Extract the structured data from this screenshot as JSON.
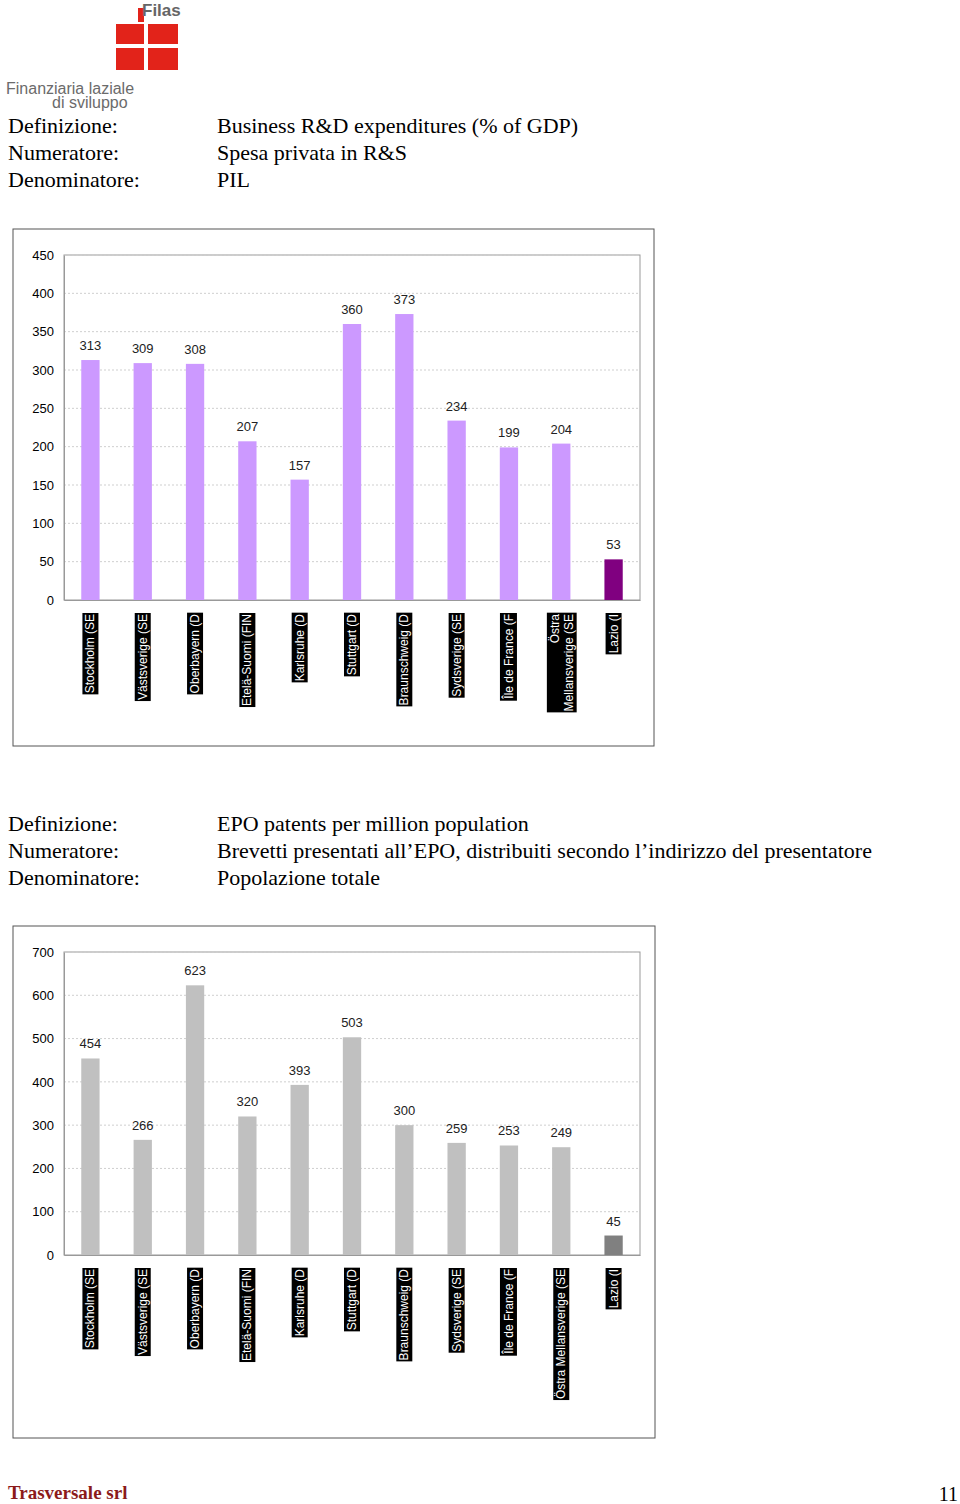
{
  "header": {
    "brand": "Filas",
    "company_line1": "Finanziaria laziale",
    "company_line2": "di sviluppo"
  },
  "definitions": [
    {
      "rows": [
        {
          "label": "Definizione:",
          "text": "Business R&D expenditures (% of GDP)"
        },
        {
          "label": "Numeratore:",
          "text": "Spesa privata in R&S"
        },
        {
          "label": "Denominatore:",
          "text": "PIL"
        }
      ]
    },
    {
      "rows": [
        {
          "label": "Definizione:",
          "text": "EPO patents per million population"
        },
        {
          "label": "Numeratore:",
          "text": "Brevetti presentati all’EPO, distribuiti secondo l’indirizzo del presentatore"
        },
        {
          "label": "Denominatore:",
          "text": "Popolazione totale"
        }
      ]
    }
  ],
  "chart_data": [
    {
      "type": "bar",
      "categories": [
        "Stockholm (SE",
        "Västsverige (SE",
        "Oberbayern (D",
        "Etelä-Suomi (FIN",
        "Karlsruhe (D",
        "Stuttgart (D",
        "Braunschweig (D",
        "Sydsverige (SE",
        "Île de France (F",
        "Östra Mellansverige (SE",
        "Lazio (I"
      ],
      "values": [
        313,
        309,
        308,
        207,
        157,
        360,
        373,
        234,
        199,
        204,
        53
      ],
      "colors": [
        "#cc99ff",
        "#cc99ff",
        "#cc99ff",
        "#cc99ff",
        "#cc99ff",
        "#cc99ff",
        "#cc99ff",
        "#cc99ff",
        "#cc99ff",
        "#cc99ff",
        "#800080"
      ],
      "ylim": [
        0,
        450
      ],
      "yticks": [
        0,
        50,
        100,
        150,
        200,
        250,
        300,
        350,
        400,
        450
      ],
      "grid": true,
      "data_labels": true
    },
    {
      "type": "bar",
      "categories": [
        "Stockholm (SE",
        "Västsverige (SE",
        "Oberbayern (D",
        "Etelä-Suomi (FIN",
        "Karlsruhe (D",
        "Stuttgart (D",
        "Braunschweig (D",
        "Sydsverige (SE",
        "Île de France (F",
        "Östra Mellansverige (SE",
        "Lazio (I"
      ],
      "values": [
        454,
        266,
        623,
        320,
        393,
        503,
        300,
        259,
        253,
        249,
        45
      ],
      "colors": [
        "#c0c0c0",
        "#c0c0c0",
        "#c0c0c0",
        "#c0c0c0",
        "#c0c0c0",
        "#c0c0c0",
        "#c0c0c0",
        "#c0c0c0",
        "#c0c0c0",
        "#c0c0c0",
        "#808080"
      ],
      "ylim": [
        0,
        700
      ],
      "yticks": [
        0,
        100,
        200,
        300,
        400,
        500,
        600,
        700
      ],
      "grid": true,
      "data_labels": true
    }
  ],
  "footer": {
    "company": "Trasversale srl",
    "page": "11"
  }
}
